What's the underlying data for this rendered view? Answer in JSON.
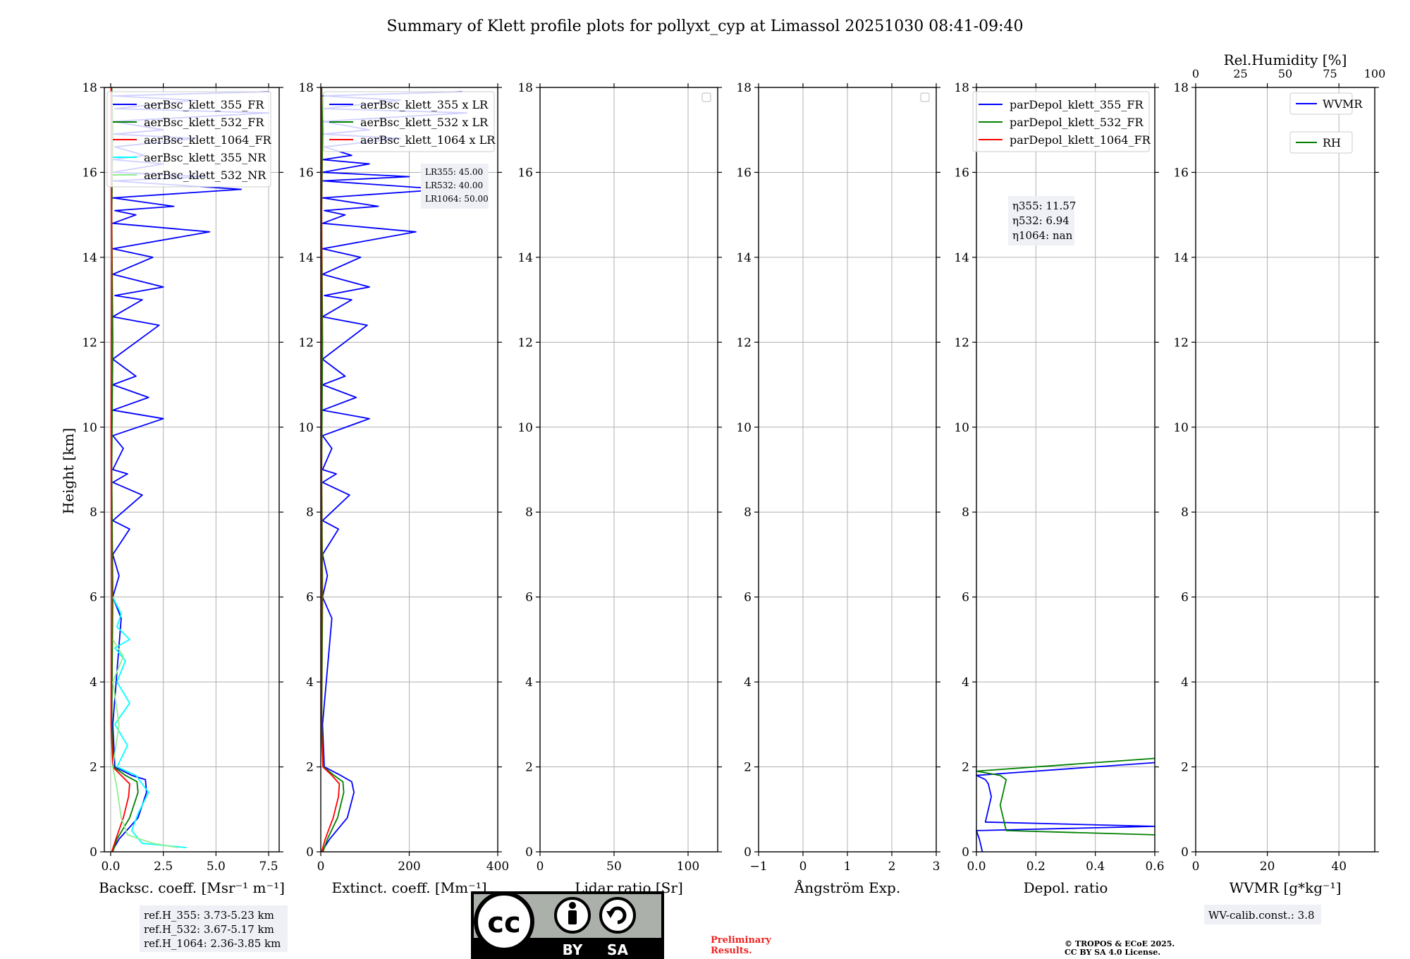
{
  "title": "Summary of Klett profile plots for pollyxt_cyp at Limassol 20251030 08:41-09:40",
  "y_axis": {
    "label": "Height [km]",
    "ylim": [
      0,
      18
    ],
    "ticks": [
      0,
      2,
      4,
      6,
      8,
      10,
      12,
      14,
      16,
      18
    ]
  },
  "colors": {
    "blue": "#0000ff",
    "green": "#008000",
    "red": "#ff0000",
    "cyan": "#00ffff",
    "lightgreen": "#90ee90",
    "grid": "#b0b0b0",
    "legend_bg": "#eef0f6",
    "prelim": "#ee2222"
  },
  "chart_data": [
    {
      "type": "line",
      "id": "bsc",
      "xlabel": "Backsc. coeff. [Msr⁻¹ m⁻¹]",
      "xlim": [
        -0.3,
        8
      ],
      "xticks": [
        0,
        2.5,
        5,
        7.5
      ],
      "xtick_labels": [
        "0.0",
        "2.5",
        "5.0",
        "7.5"
      ],
      "legend": [
        {
          "label": "aerBsc_klett_355_FR",
          "color": "#0000ff"
        },
        {
          "label": "aerBsc_klett_532_FR",
          "color": "#008000"
        },
        {
          "label": "aerBsc_klett_1064_FR",
          "color": "#ff0000"
        },
        {
          "label": "aerBsc_klett_355_NR",
          "color": "#00ffff"
        },
        {
          "label": "aerBsc_klett_532_NR",
          "color": "#90ee90"
        }
      ],
      "series": [
        {
          "name": "aerBsc_klett_355_FR",
          "color": "#0000ff",
          "x": [
            0.05,
            0.4,
            1.3,
            1.7,
            1.65,
            1.0,
            0.2,
            0.1,
            0.5,
            0.1,
            0.4,
            0.1,
            0.9,
            0.1,
            1.5,
            0.1,
            0.8,
            0.1,
            0.6,
            0.1,
            2.5,
            0.1,
            1.8,
            0.1,
            1.2,
            0.1,
            2.3,
            0.1,
            1.5,
            0.2,
            2.5,
            0.1,
            2.0,
            0.1,
            4.7,
            0.1,
            1.2,
            0.2,
            3.0,
            0.1,
            6.2,
            0.1,
            4.5,
            0.1,
            2.5,
            0.1,
            1.6,
            0.2,
            4.0,
            0.1,
            2.5,
            0.1,
            7.5,
            0.2,
            4.0,
            0.1,
            7.5
          ],
          "y": [
            0,
            0.3,
            0.8,
            1.4,
            1.7,
            1.8,
            2.0,
            3.0,
            5.5,
            6.0,
            6.5,
            7.0,
            7.6,
            7.8,
            8.4,
            8.7,
            8.9,
            9.0,
            9.5,
            9.8,
            10.2,
            10.4,
            10.7,
            11.0,
            11.2,
            11.6,
            12.4,
            12.6,
            13.0,
            13.1,
            13.3,
            13.6,
            14.0,
            14.2,
            14.6,
            14.8,
            15.0,
            15.1,
            15.2,
            15.4,
            15.6,
            15.8,
            15.9,
            16.0,
            16.2,
            16.3,
            16.4,
            16.6,
            16.8,
            16.9,
            17.0,
            17.2,
            17.4,
            17.5,
            17.7,
            17.8,
            17.9
          ]
        },
        {
          "name": "aerBsc_klett_532_FR",
          "color": "#008000",
          "x": [
            0.1,
            0.3,
            0.9,
            1.3,
            1.25,
            0.7,
            0.15,
            0.05,
            0.1,
            0.05,
            0.1,
            0.05,
            0.1,
            0.05
          ],
          "y": [
            0,
            0.3,
            0.8,
            1.4,
            1.65,
            1.8,
            2.0,
            3.0,
            6.0,
            9.0,
            12.0,
            15.0,
            17.0,
            18.0
          ]
        },
        {
          "name": "aerBsc_klett_1064_FR",
          "color": "#ff0000",
          "x": [
            0.05,
            0.25,
            0.6,
            0.85,
            0.9,
            0.5,
            0.1,
            0.02,
            0.05,
            0.02,
            0.05,
            0.02
          ],
          "y": [
            0,
            0.3,
            0.8,
            1.3,
            1.6,
            1.8,
            2.0,
            3.0,
            6.0,
            10.0,
            14.0,
            18.0
          ]
        },
        {
          "name": "aerBsc_klett_355_NR",
          "color": "#00ffff",
          "x": [
            3.6,
            1.5,
            1.0,
            1.3,
            1.8,
            1.2,
            0.3,
            0.8,
            0.2,
            0.9,
            0.3,
            0.7,
            0.2,
            0.9,
            0.3,
            0.5,
            0.1
          ],
          "y": [
            0.1,
            0.2,
            0.5,
            0.9,
            1.4,
            1.8,
            2.0,
            2.5,
            3.0,
            3.5,
            4.0,
            4.5,
            4.8,
            5.0,
            5.3,
            5.6,
            6.0
          ]
        },
        {
          "name": "aerBsc_klett_532_NR",
          "color": "#90ee90",
          "x": [
            3.2,
            2.0,
            0.8,
            0.5,
            0.3,
            0.1,
            0.4,
            0.1,
            0.6,
            0.1
          ],
          "y": [
            0.1,
            0.2,
            0.4,
            0.8,
            1.5,
            2.0,
            3.0,
            4.0,
            4.6,
            5.0
          ]
        }
      ],
      "annotation": [
        "ref.H_355: 3.73-5.23 km",
        "ref.H_532: 3.67-5.17 km",
        "ref.H_1064: 2.36-3.85 km"
      ]
    },
    {
      "type": "line",
      "id": "ext",
      "xlabel": "Extinct. coeff. [Mm⁻¹]",
      "xlim": [
        0,
        400
      ],
      "xticks": [
        0,
        200,
        400
      ],
      "xtick_labels": [
        "0",
        "200",
        "400"
      ],
      "legend": [
        {
          "label": "aerBsc_klett_355 x LR",
          "color": "#0000ff"
        },
        {
          "label": "aerBsc_klett_532 x LR",
          "color": "#008000"
        },
        {
          "label": "aerBsc_klett_1064 x LR",
          "color": "#ff0000"
        }
      ],
      "series": [
        {
          "name": "aerBsc_klett_355 x LR",
          "color": "#0000ff",
          "x": [
            2,
            20,
            60,
            75,
            70,
            45,
            8,
            4,
            25,
            4,
            15,
            4,
            40,
            4,
            65,
            4,
            35,
            4,
            25,
            4,
            110,
            4,
            80,
            4,
            55,
            4,
            105,
            4,
            70,
            8,
            110,
            4,
            90,
            4,
            215,
            4,
            55,
            8,
            130,
            4,
            280,
            4,
            200,
            4,
            110,
            4,
            70,
            8,
            180,
            4,
            110,
            4,
            330,
            8,
            180,
            4,
            320
          ],
          "y": [
            0,
            0.3,
            0.8,
            1.4,
            1.65,
            1.8,
            2.0,
            3.0,
            5.5,
            6.0,
            6.5,
            7.0,
            7.6,
            7.8,
            8.4,
            8.7,
            8.9,
            9.0,
            9.5,
            9.8,
            10.2,
            10.4,
            10.7,
            11.0,
            11.2,
            11.6,
            12.4,
            12.6,
            13.0,
            13.1,
            13.3,
            13.6,
            14.0,
            14.2,
            14.6,
            14.8,
            15.0,
            15.1,
            15.2,
            15.4,
            15.6,
            15.8,
            15.9,
            16.0,
            16.2,
            16.3,
            16.4,
            16.6,
            16.8,
            16.9,
            17.0,
            17.2,
            17.4,
            17.5,
            17.7,
            17.8,
            17.9
          ]
        },
        {
          "name": "aerBsc_klett_532 x LR",
          "color": "#008000",
          "x": [
            5,
            15,
            38,
            52,
            50,
            30,
            6,
            2,
            4,
            2,
            4,
            2,
            4,
            2
          ],
          "y": [
            0,
            0.3,
            0.8,
            1.4,
            1.65,
            1.8,
            2.0,
            3.0,
            6.0,
            9.0,
            12.0,
            15.0,
            17.0,
            18.0
          ]
        },
        {
          "name": "aerBsc_klett_1064 x LR",
          "color": "#ff0000",
          "x": [
            2,
            10,
            28,
            40,
            42,
            25,
            5,
            1,
            2,
            1,
            2,
            1
          ],
          "y": [
            0,
            0.3,
            0.8,
            1.3,
            1.6,
            1.8,
            2.0,
            3.0,
            6.0,
            10.0,
            14.0,
            18.0
          ]
        }
      ],
      "annotation": [
        "LR355: 45.00",
        "LR532: 40.00",
        "LR1064: 50.00"
      ]
    },
    {
      "type": "line",
      "id": "lr",
      "xlabel": "Lidar ratio [Sr]",
      "xlim": [
        0,
        120
      ],
      "xticks": [
        0,
        50,
        100
      ],
      "xtick_labels": [
        "0",
        "50",
        "100"
      ],
      "legend": [],
      "series": []
    },
    {
      "type": "line",
      "id": "ae",
      "xlabel": "Ångström Exp.",
      "xlim": [
        -1,
        3
      ],
      "xticks": [
        -1,
        0,
        1,
        2,
        3
      ],
      "xtick_labels": [
        "−1",
        "0",
        "1",
        "2",
        "3"
      ],
      "legend": [],
      "series": []
    },
    {
      "type": "line",
      "id": "dep",
      "xlabel": "Depol. ratio",
      "xlim": [
        0,
        0.6
      ],
      "xticks": [
        0,
        0.2,
        0.4,
        0.6
      ],
      "xtick_labels": [
        "0.0",
        "0.2",
        "0.4",
        "0.6"
      ],
      "legend": [
        {
          "label": "parDepol_klett_355_FR",
          "color": "#0000ff"
        },
        {
          "label": "parDepol_klett_532_FR",
          "color": "#008000"
        },
        {
          "label": "parDepol_klett_1064_FR",
          "color": "#ff0000"
        }
      ],
      "series": [
        {
          "name": "parDepol_klett_355_FR",
          "color": "#0000ff",
          "x": [
            0.02,
            0.01,
            0.0,
            0.6,
            0.03,
            0.04,
            0.05,
            0.04,
            0.03,
            0.0,
            0.6
          ],
          "y": [
            0.0,
            0.3,
            0.5,
            0.6,
            0.7,
            1.0,
            1.3,
            1.6,
            1.7,
            1.8,
            2.1
          ]
        },
        {
          "name": "parDepol_klett_532_FR",
          "color": "#008000",
          "x": [
            0.6,
            0.1,
            0.09,
            0.08,
            0.09,
            0.1,
            0.08,
            0.0,
            0.6
          ],
          "y": [
            0.4,
            0.5,
            0.8,
            1.1,
            1.4,
            1.7,
            1.8,
            1.9,
            2.2
          ]
        }
      ],
      "annotation": [
        "η355: 11.57",
        "η532: 6.94",
        "η1064: nan"
      ]
    },
    {
      "type": "line",
      "id": "wv",
      "xlabel": "WVMR [g*kg⁻¹]",
      "xlim": [
        0,
        50
      ],
      "xticks": [
        0,
        20,
        40
      ],
      "xtick_labels": [
        "0",
        "20",
        "40"
      ],
      "top_xlabel": "Rel.Humidity [%]",
      "top_xticks": [
        0,
        25,
        50,
        75,
        100
      ],
      "top_xtick_labels": [
        "0",
        "25",
        "50",
        "75",
        "100"
      ],
      "legend": [
        {
          "label": "WVMR",
          "color": "#0000ff"
        },
        {
          "label": "RH",
          "color": "#008000"
        }
      ],
      "series": [],
      "annotation": [
        "WV-calib.const.: 3.8"
      ]
    }
  ],
  "license": {
    "cc": "cc",
    "by": "BY",
    "sa": "SA",
    "copyright_line1": "© TROPOS & ECoE 2025.",
    "copyright_line2": "CC BY SA 4.0 License."
  },
  "preliminary": {
    "line1": "Preliminary",
    "line2": "Results."
  }
}
